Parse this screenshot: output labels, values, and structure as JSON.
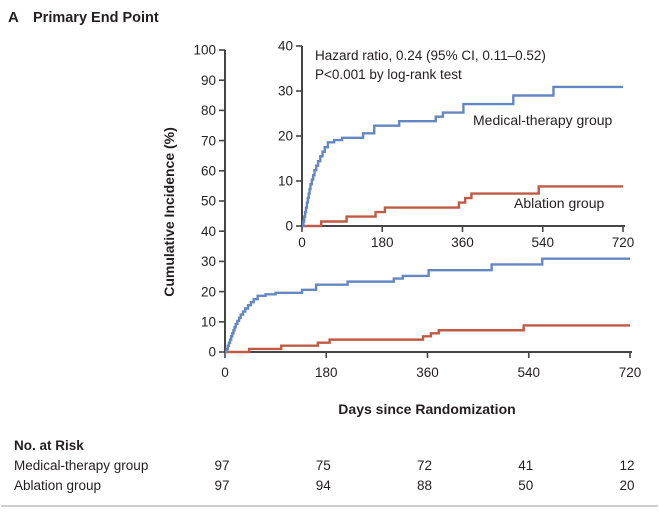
{
  "panel": {
    "letter": "A",
    "title": "Primary End Point"
  },
  "colors": {
    "medical": "#6487c3",
    "ablation": "#c05a44",
    "axis": "#454545",
    "text": "#231f20",
    "rule": "#bdbdbd"
  },
  "chart_data": {
    "type": "line",
    "subtype": "kaplan-meier-cumulative-incidence-step",
    "title": "Primary End Point",
    "xlabel": "Days since Randomization",
    "ylabel": "Cumulative Incidence (%)",
    "xlim": [
      0,
      720
    ],
    "x_ticks": [
      0,
      180,
      360,
      540,
      720
    ],
    "main_panel": {
      "ylim": [
        0,
        100
      ],
      "y_ticks": [
        0,
        10,
        20,
        30,
        40,
        50,
        60,
        70,
        80,
        90,
        100
      ]
    },
    "inset_panel": {
      "ylim": [
        0,
        40
      ],
      "y_ticks": [
        0,
        10,
        20,
        30,
        40
      ]
    },
    "legend_position": "labels-on-curves",
    "grid": false,
    "annotation": [
      "Hazard ratio, 0.24 (95% CI, 0.11–0.52)",
      "P<0.001 by log-rank test"
    ],
    "series": [
      {
        "name": "Medical-therapy group",
        "color": "#6487c3",
        "points": [
          [
            0,
            0
          ],
          [
            3,
            1.0
          ],
          [
            5,
            2.1
          ],
          [
            7,
            3.1
          ],
          [
            9,
            4.1
          ],
          [
            11,
            5.2
          ],
          [
            13,
            6.2
          ],
          [
            15,
            7.2
          ],
          [
            17,
            8.2
          ],
          [
            19,
            9.3
          ],
          [
            22,
            10.3
          ],
          [
            25,
            11.3
          ],
          [
            28,
            12.4
          ],
          [
            32,
            13.4
          ],
          [
            36,
            14.4
          ],
          [
            41,
            15.5
          ],
          [
            46,
            16.5
          ],
          [
            51,
            17.5
          ],
          [
            58,
            18.6
          ],
          [
            72,
            19.1
          ],
          [
            90,
            19.6
          ],
          [
            137,
            20.6
          ],
          [
            162,
            22.3
          ],
          [
            218,
            23.3
          ],
          [
            300,
            24.3
          ],
          [
            316,
            25.2
          ],
          [
            362,
            27.1
          ],
          [
            474,
            29.0
          ],
          [
            564,
            30.9
          ],
          [
            720,
            30.9
          ]
        ]
      },
      {
        "name": "Ablation group",
        "color": "#c05a44",
        "points": [
          [
            0,
            0
          ],
          [
            43,
            1.0
          ],
          [
            100,
            2.1
          ],
          [
            165,
            3.1
          ],
          [
            186,
            4.1
          ],
          [
            352,
            5.2
          ],
          [
            366,
            6.2
          ],
          [
            380,
            7.2
          ],
          [
            531,
            8.8
          ],
          [
            720,
            8.8
          ]
        ]
      }
    ]
  },
  "risk_table": {
    "header": "No. at Risk",
    "columns_days": [
      0,
      180,
      360,
      540,
      720
    ],
    "rows": [
      {
        "label": "Medical-therapy group",
        "values": [
          97,
          75,
          72,
          41,
          12
        ]
      },
      {
        "label": "Ablation group",
        "values": [
          97,
          94,
          88,
          50,
          20
        ]
      }
    ]
  }
}
